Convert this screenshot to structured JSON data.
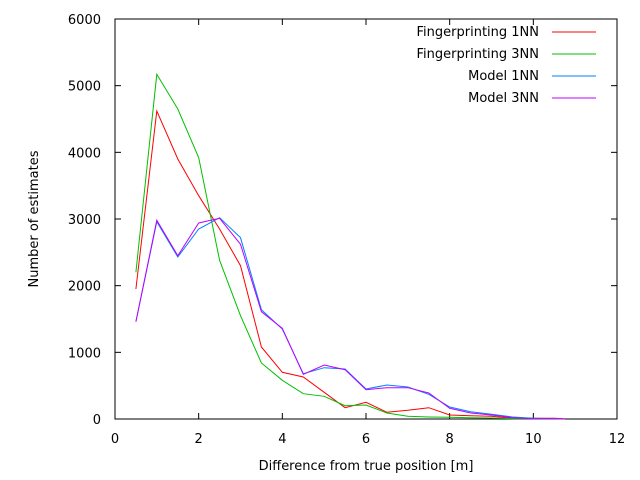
{
  "chart_data": {
    "type": "line",
    "xlabel": "Difference from true position [m]",
    "ylabel": "Number of estimates",
    "xlim": [
      0,
      12
    ],
    "ylim": [
      0,
      6000
    ],
    "xticks": [
      0,
      2,
      4,
      6,
      8,
      10,
      12
    ],
    "yticks": [
      0,
      1000,
      2000,
      3000,
      4000,
      5000,
      6000
    ],
    "xtick_labels": [
      "0",
      "2",
      "4",
      "6",
      "8",
      "10",
      "12"
    ],
    "ytick_labels": [
      "0",
      "1000",
      "2000",
      "3000",
      "4000",
      "5000",
      "6000"
    ],
    "grid": false,
    "legend_position": "top-right",
    "x": [
      0.5,
      1,
      1.5,
      2,
      2.5,
      3,
      3.5,
      4,
      4.5,
      5,
      5.5,
      6,
      6.5,
      7,
      7.5,
      8,
      8.5,
      9,
      9.5,
      10,
      10.5,
      10.75
    ],
    "series": [
      {
        "name": "Fingerprinting 1NN",
        "color": "#ff0000",
        "values": [
          1950,
          4620,
          3900,
          3350,
          2850,
          2300,
          1080,
          700,
          630,
          400,
          170,
          250,
          100,
          130,
          170,
          60,
          50,
          40,
          10,
          10,
          10,
          5
        ]
      },
      {
        "name": "Fingerprinting 3NN",
        "color": "#00c000",
        "values": [
          2200,
          5170,
          4650,
          3920,
          2380,
          1550,
          840,
          580,
          380,
          340,
          200,
          210,
          90,
          40,
          30,
          25,
          20,
          15,
          5,
          5,
          5,
          0
        ]
      },
      {
        "name": "Model 1NN",
        "color": "#0080ff",
        "values": [
          1460,
          2960,
          2430,
          2850,
          3020,
          2720,
          1640,
          1350,
          680,
          770,
          750,
          450,
          510,
          480,
          370,
          180,
          110,
          70,
          30,
          10,
          5,
          0
        ]
      },
      {
        "name": "Model 3NN",
        "color": "#c000ff",
        "values": [
          1460,
          2980,
          2450,
          2940,
          3010,
          2620,
          1610,
          1360,
          670,
          810,
          740,
          440,
          470,
          470,
          390,
          160,
          90,
          60,
          20,
          5,
          5,
          0
        ]
      }
    ]
  }
}
